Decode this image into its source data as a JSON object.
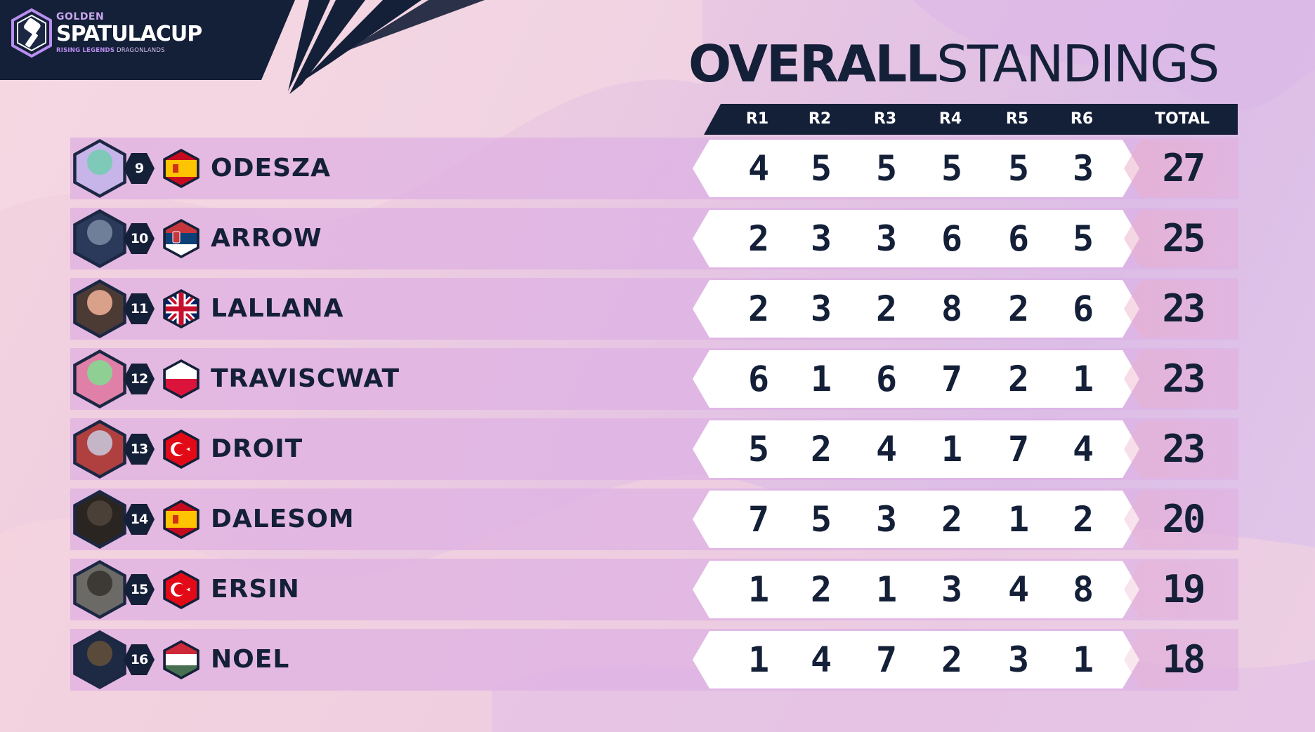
{
  "brand": {
    "top": "GOLDEN",
    "main": "SPATULACUP",
    "sub_bold": "RISING LEGENDS",
    "sub_rest": " DRAGONLANDS"
  },
  "title": {
    "bold": "OVERALL",
    "light": "STANDINGS"
  },
  "columns": [
    "R1",
    "R2",
    "R3",
    "R4",
    "R5",
    "R6"
  ],
  "total_label": "TOTAL",
  "colors": {
    "navy": "#141f38",
    "accent": "#b98ef0",
    "score_bg": "#ffffff"
  },
  "players": [
    {
      "seed": "9",
      "name": "ODESZA",
      "flag": "spain-flag-icon",
      "scores": [
        "4",
        "5",
        "5",
        "5",
        "5",
        "3"
      ],
      "total": "27",
      "avatar": "odesza-avatar"
    },
    {
      "seed": "10",
      "name": "ARROW",
      "flag": "serbia-flag-icon",
      "scores": [
        "2",
        "3",
        "3",
        "6",
        "6",
        "5"
      ],
      "total": "25",
      "avatar": "arrow-avatar"
    },
    {
      "seed": "11",
      "name": "LALLANA",
      "flag": "uk-flag-icon",
      "scores": [
        "2",
        "3",
        "2",
        "8",
        "2",
        "6"
      ],
      "total": "23",
      "avatar": "lallana-avatar"
    },
    {
      "seed": "12",
      "name": "TRAVISCWAT",
      "flag": "poland-flag-icon",
      "scores": [
        "6",
        "1",
        "6",
        "7",
        "2",
        "1"
      ],
      "total": "23",
      "avatar": "traviscwat-avatar"
    },
    {
      "seed": "13",
      "name": "DROIT",
      "flag": "turkey-flag-icon",
      "scores": [
        "5",
        "2",
        "4",
        "1",
        "7",
        "4"
      ],
      "total": "23",
      "avatar": "droit-avatar"
    },
    {
      "seed": "14",
      "name": "DALESOM",
      "flag": "spain-flag-icon",
      "scores": [
        "7",
        "5",
        "3",
        "2",
        "1",
        "2"
      ],
      "total": "20",
      "avatar": "dalesom-avatar"
    },
    {
      "seed": "15",
      "name": "ERSIN",
      "flag": "turkey-flag-icon",
      "scores": [
        "1",
        "2",
        "1",
        "3",
        "4",
        "8"
      ],
      "total": "19",
      "avatar": "ersin-avatar"
    },
    {
      "seed": "16",
      "name": "NOEL",
      "flag": "hungary-flag-icon",
      "scores": [
        "1",
        "4",
        "7",
        "2",
        "3",
        "1"
      ],
      "total": "18",
      "avatar": "noel-avatar"
    }
  ]
}
